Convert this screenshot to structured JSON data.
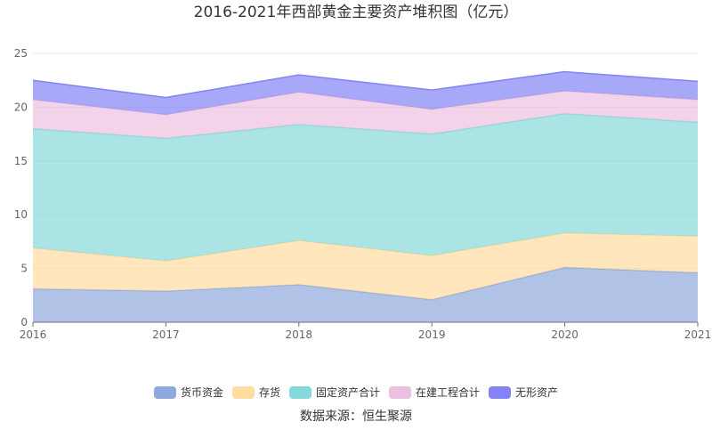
{
  "chart_data": {
    "type": "area",
    "stacked": true,
    "title": "2016-2021年西部黄金主要资产堆积图（亿元）",
    "source": "数据来源：恒生聚源",
    "x": [
      "2016",
      "2017",
      "2018",
      "2019",
      "2020",
      "2021"
    ],
    "ylim": [
      0,
      25
    ],
    "yticks": [
      "0",
      "5",
      "10",
      "15",
      "20",
      "25"
    ],
    "grid": true,
    "legend_position": "bottom",
    "series": [
      {
        "name": "货币资金",
        "color": "#8ea9db",
        "values": [
          3.1,
          2.9,
          3.5,
          2.1,
          5.1,
          4.6
        ]
      },
      {
        "name": "存货",
        "color": "#ffdca0",
        "values": [
          3.8,
          2.8,
          4.1,
          4.1,
          3.2,
          3.4
        ]
      },
      {
        "name": "固定资产合计",
        "color": "#86d9d8",
        "values": [
          11.1,
          11.4,
          10.8,
          11.3,
          11.1,
          10.6
        ]
      },
      {
        "name": "在建工程合计",
        "color": "#ecc0e0",
        "values": [
          2.7,
          2.2,
          3.0,
          2.3,
          2.1,
          2.1
        ]
      },
      {
        "name": "无形资产",
        "color": "#8383f5",
        "values": [
          1.8,
          1.6,
          1.6,
          1.8,
          1.8,
          1.7
        ]
      }
    ]
  }
}
